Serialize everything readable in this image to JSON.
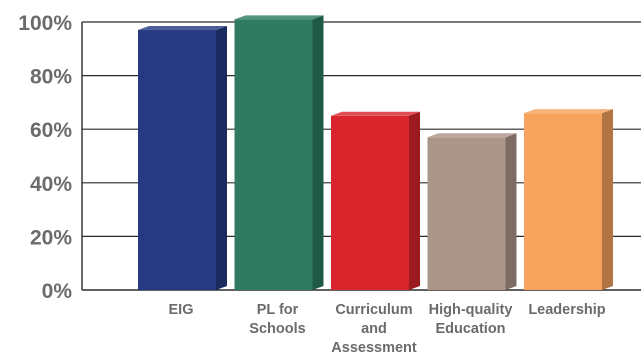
{
  "chart_data": {
    "type": "bar",
    "title": "",
    "xlabel": "",
    "ylabel": "",
    "categories": [
      [
        "EIG"
      ],
      [
        "PL for",
        "Schools"
      ],
      [
        "Curriculum",
        "and",
        "Assessment"
      ],
      [
        "High-quality",
        "Education"
      ],
      [
        "Leadership"
      ]
    ],
    "values": [
      97,
      101,
      65,
      57,
      66
    ],
    "colors": [
      "#263a84",
      "#2e7b62",
      "#d9262c",
      "#ac968a",
      "#f6a35e"
    ],
    "ylim": [
      0,
      100
    ],
    "yticks": [
      0,
      20,
      40,
      60,
      80,
      100
    ],
    "ytick_labels": [
      "0%",
      "20%",
      "40%",
      "60%",
      "80%",
      "100%"
    ],
    "grid": true,
    "style": "3d-bars"
  }
}
